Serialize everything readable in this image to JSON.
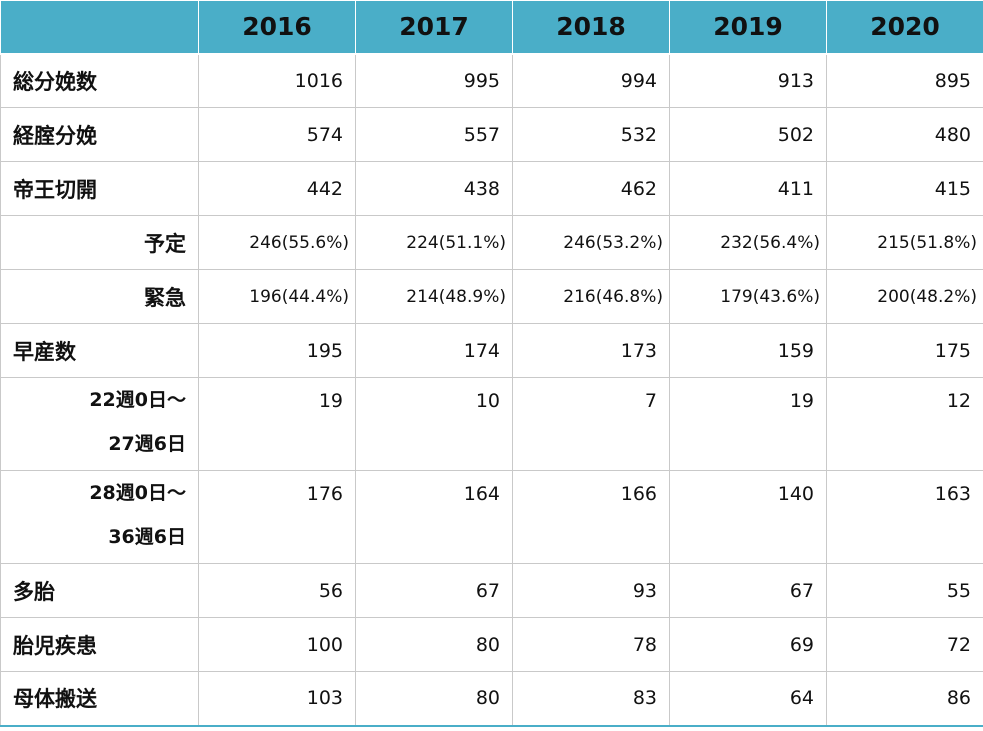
{
  "header": {
    "corner": "",
    "years": [
      "2016",
      "2017",
      "2018",
      "2019",
      "2020"
    ]
  },
  "rows": [
    {
      "label": "総分娩数",
      "values": [
        "1016",
        "995",
        "994",
        "913",
        "895"
      ]
    },
    {
      "label": "経腟分娩",
      "values": [
        "574",
        "557",
        "532",
        "502",
        "480"
      ]
    },
    {
      "label": "帝王切開",
      "values": [
        "442",
        "438",
        "462",
        "411",
        "415"
      ]
    },
    {
      "label": "予定",
      "values": [
        "246(55.6%)",
        "224(51.1%)",
        "246(53.2%)",
        "232(56.4%)",
        "215(51.8%)"
      ]
    },
    {
      "label": "緊急",
      "values": [
        "196(44.4%)",
        "214(48.9%)",
        "216(46.8%)",
        "179(43.6%)",
        "200(48.2%)"
      ]
    },
    {
      "label": "早産数",
      "values": [
        "195",
        "174",
        "173",
        "159",
        "175"
      ]
    },
    {
      "label_line1": "22週0日～",
      "label_line2": "27週6日",
      "values": [
        "19",
        "10",
        "7",
        "19",
        "12"
      ]
    },
    {
      "label_line1": "28週0日～",
      "label_line2": "36週6日",
      "values": [
        "176",
        "164",
        "166",
        "140",
        "163"
      ]
    },
    {
      "label": "多胎",
      "values": [
        "56",
        "67",
        "93",
        "67",
        "55"
      ]
    },
    {
      "label": "胎児疾患",
      "values": [
        "100",
        "80",
        "78",
        "69",
        "72"
      ]
    },
    {
      "label": "母体搬送",
      "values": [
        "103",
        "80",
        "83",
        "64",
        "86"
      ]
    }
  ],
  "colors": {
    "header_bg": "#4aaec8",
    "border": "#c9c9c9"
  }
}
